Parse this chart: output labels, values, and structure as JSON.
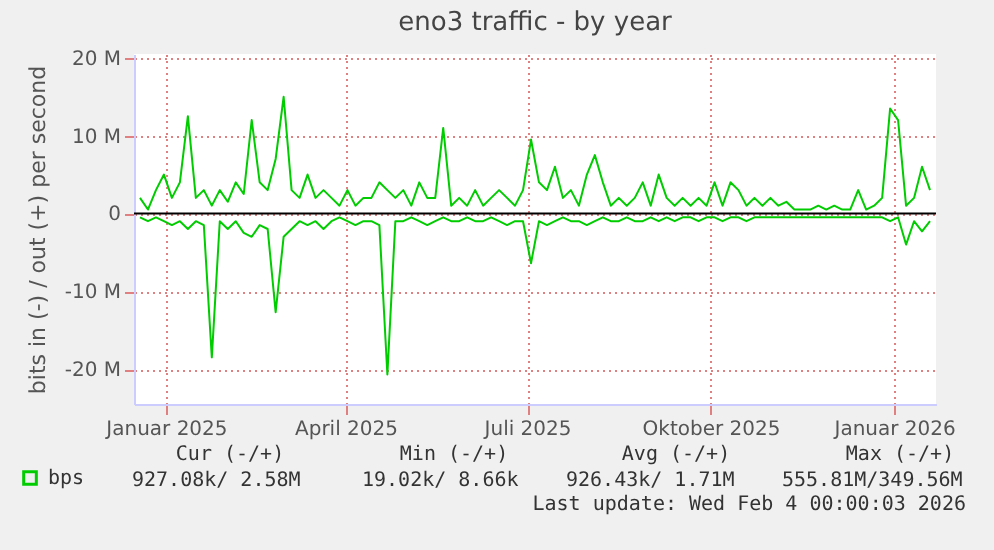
{
  "chart_data": {
    "type": "line",
    "title": "eno3 traffic - by year",
    "ylabel": "bits in (-) / out (+) per second",
    "x": [
      "2024-12-19",
      "2024-12-23",
      "2024-12-27",
      "2024-12-31",
      "2025-01-04",
      "2025-01-08",
      "2025-01-12",
      "2025-01-16",
      "2025-01-20",
      "2025-01-24",
      "2025-01-28",
      "2025-02-01",
      "2025-02-05",
      "2025-02-09",
      "2025-02-13",
      "2025-02-17",
      "2025-02-21",
      "2025-02-25",
      "2025-03-01",
      "2025-03-05",
      "2025-03-09",
      "2025-03-13",
      "2025-03-17",
      "2025-03-21",
      "2025-03-25",
      "2025-03-29",
      "2025-04-02",
      "2025-04-06",
      "2025-04-10",
      "2025-04-14",
      "2025-04-18",
      "2025-04-22",
      "2025-04-26",
      "2025-04-30",
      "2025-05-04",
      "2025-05-08",
      "2025-05-12",
      "2025-05-16",
      "2025-05-20",
      "2025-05-24",
      "2025-05-28",
      "2025-06-01",
      "2025-06-05",
      "2025-06-09",
      "2025-06-13",
      "2025-06-17",
      "2025-06-21",
      "2025-06-25",
      "2025-06-29",
      "2025-07-03",
      "2025-07-07",
      "2025-07-11",
      "2025-07-15",
      "2025-07-19",
      "2025-07-23",
      "2025-07-27",
      "2025-07-31",
      "2025-08-04",
      "2025-08-08",
      "2025-08-12",
      "2025-08-16",
      "2025-08-20",
      "2025-08-24",
      "2025-08-28",
      "2025-09-01",
      "2025-09-05",
      "2025-09-09",
      "2025-09-13",
      "2025-09-17",
      "2025-09-21",
      "2025-09-25",
      "2025-09-29",
      "2025-10-03",
      "2025-10-07",
      "2025-10-11",
      "2025-10-15",
      "2025-10-19",
      "2025-10-23",
      "2025-10-27",
      "2025-10-31",
      "2025-11-04",
      "2025-11-08",
      "2025-11-12",
      "2025-11-16",
      "2025-11-20",
      "2025-11-24",
      "2025-11-28",
      "2025-12-02",
      "2025-12-06",
      "2025-12-10",
      "2025-12-14",
      "2025-12-18",
      "2025-12-22",
      "2025-12-26",
      "2025-12-30",
      "2026-01-03",
      "2026-01-07",
      "2026-01-11",
      "2026-01-15",
      "2026-01-19"
    ],
    "series": [
      {
        "name": "bps",
        "color": "#00cc00",
        "values": [
          2,
          0.5,
          3,
          5,
          2,
          4,
          12.5,
          2,
          3,
          1,
          3,
          1.5,
          4,
          2.5,
          12,
          4,
          3,
          7,
          15,
          3,
          2,
          5,
          2,
          3,
          2,
          1,
          3,
          1,
          2,
          2,
          4,
          3,
          2,
          3,
          1,
          4,
          2,
          2,
          11,
          1,
          2,
          1,
          3,
          1,
          2,
          3,
          2,
          1,
          3,
          9.5,
          4,
          3,
          6,
          2,
          3,
          1,
          5,
          7.5,
          4,
          1,
          2,
          1,
          2,
          4,
          1,
          5,
          2,
          1,
          2,
          1,
          2,
          1,
          4,
          1,
          4,
          3,
          1,
          2,
          1,
          2,
          1,
          1.5,
          0.5,
          0.5,
          0.5,
          1,
          0.5,
          1,
          0.5,
          0.5,
          3,
          0.5,
          1,
          2,
          13.5,
          12,
          1,
          2,
          6,
          3
        ]
      },
      {
        "color": "#00cc00",
        "values": [
          -0.5,
          -1,
          -0.5,
          -1,
          -1.5,
          -1,
          -2,
          -1,
          -1.5,
          -18.5,
          -1,
          -2,
          -1,
          -2.5,
          -3,
          -1.5,
          -2,
          -12.7,
          -3,
          -2,
          -1,
          -1.5,
          -1,
          -2,
          -1,
          -0.5,
          -1,
          -1.5,
          -1,
          -1,
          -1.5,
          -20.7,
          -1,
          -1,
          -0.5,
          -1,
          -1.5,
          -1,
          -0.5,
          -1,
          -1,
          -0.5,
          -1,
          -1,
          -0.5,
          -1,
          -1.5,
          -1,
          -1,
          -6.4,
          -1,
          -1.5,
          -1,
          -0.5,
          -1,
          -1,
          -1.5,
          -1,
          -0.5,
          -1,
          -1,
          -0.5,
          -1,
          -1,
          -0.5,
          -1,
          -0.5,
          -1,
          -0.5,
          -0.5,
          -1,
          -0.5,
          -0.5,
          -1,
          -0.5,
          -0.5,
          -1,
          -0.5,
          -0.5,
          -0.5,
          -0.5,
          -0.5,
          -0.5,
          -0.5,
          -0.5,
          -0.5,
          -0.5,
          -0.5,
          -0.5,
          -0.5,
          -0.5,
          -0.5,
          -0.5,
          -0.5,
          -1,
          -0.5,
          -4,
          -1,
          -2.3,
          -1
        ]
      }
    ],
    "xlim": [
      "2024-12-16",
      "2026-01-22"
    ],
    "xticks": [
      {
        "value": "2025-01-01",
        "label": "Januar 2025"
      },
      {
        "value": "2025-04-01",
        "label": "April 2025"
      },
      {
        "value": "2025-07-01",
        "label": "Juli 2025"
      },
      {
        "value": "2025-10-01",
        "label": "Oktober 2025"
      },
      {
        "value": "2026-01-01",
        "label": "Januar 2026"
      }
    ],
    "ylim": [
      -24.5,
      20.5
    ],
    "yticks": [
      {
        "value": -20,
        "label": "-20 M"
      },
      {
        "value": -10,
        "label": "-10 M"
      },
      {
        "value": 0,
        "label": "0"
      },
      {
        "value": 10,
        "label": "10 M"
      },
      {
        "value": 20,
        "label": "20 M"
      }
    ],
    "ref_lines": [
      {
        "axis": "y",
        "value": 0,
        "color": "#000000"
      }
    ],
    "grid": true,
    "legend": "bottom",
    "marker": "none",
    "line_style": "solid",
    "annotations": [
      "Cur (-/+)",
      "Min (-/+)",
      "Avg (-/+)",
      "Max (-/+)",
      "927.08k/  2.58M",
      "19.02k/  8.66k",
      "926.43k/  1.71M",
      "555.81M/349.56M",
      "Last update: Wed Feb  4 00:00:03 2026"
    ]
  }
}
